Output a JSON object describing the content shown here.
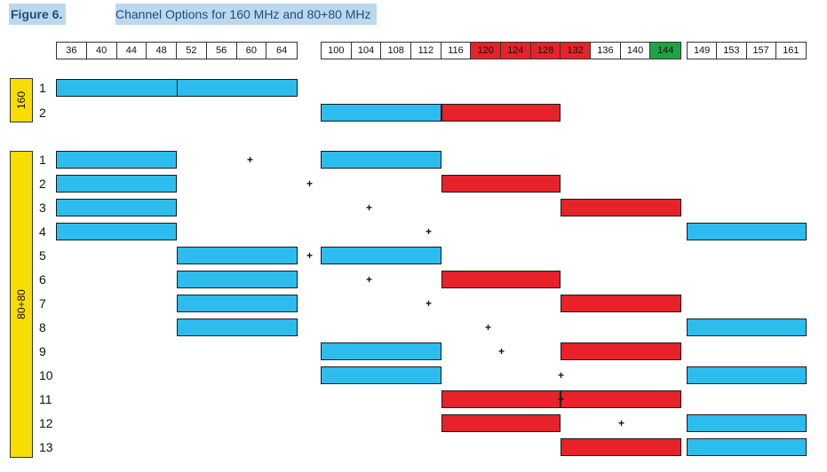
{
  "figure": {
    "label": "Figure 6.",
    "title": "Channel Options for 160 MHz and 80+80 MHz"
  },
  "channels": [
    {
      "group": "g1",
      "items": [
        {
          "num": "36",
          "kind": "normal"
        },
        {
          "num": "40",
          "kind": "normal"
        },
        {
          "num": "44",
          "kind": "normal"
        },
        {
          "num": "48",
          "kind": "normal"
        },
        {
          "num": "52",
          "kind": "normal"
        },
        {
          "num": "56",
          "kind": "normal"
        },
        {
          "num": "60",
          "kind": "normal"
        },
        {
          "num": "64",
          "kind": "normal"
        }
      ]
    },
    {
      "group": "g2",
      "items": [
        {
          "num": "100",
          "kind": "normal"
        },
        {
          "num": "104",
          "kind": "normal"
        },
        {
          "num": "108",
          "kind": "normal"
        },
        {
          "num": "112",
          "kind": "normal"
        },
        {
          "num": "116",
          "kind": "normal"
        },
        {
          "num": "120",
          "kind": "dfs"
        },
        {
          "num": "124",
          "kind": "dfs"
        },
        {
          "num": "128",
          "kind": "dfs"
        },
        {
          "num": "132",
          "kind": "dfs"
        },
        {
          "num": "136",
          "kind": "normal"
        },
        {
          "num": "140",
          "kind": "normal"
        },
        {
          "num": "144",
          "kind": "green"
        }
      ]
    },
    {
      "group": "g3",
      "items": [
        {
          "num": "149",
          "kind": "normal"
        },
        {
          "num": "153",
          "kind": "normal"
        },
        {
          "num": "157",
          "kind": "normal"
        },
        {
          "num": "161",
          "kind": "normal"
        }
      ]
    }
  ],
  "groups": {
    "g160": "160",
    "g8080": "80+80"
  },
  "colors": {
    "blue": "#2cbdee",
    "red": "#e8222a",
    "yellow": "#f7dd00",
    "green": "#1ea445"
  },
  "rows160": [
    {
      "label": "1",
      "blocks": [
        {
          "seg": "A1",
          "color": "blue"
        },
        {
          "seg": "A2",
          "color": "blue"
        }
      ]
    },
    {
      "label": "2",
      "blocks": [
        {
          "seg": "B1",
          "color": "blue"
        },
        {
          "seg": "B2",
          "color": "red"
        }
      ]
    }
  ],
  "rows8080": [
    {
      "label": "1",
      "blocks": [
        {
          "seg": "A1",
          "color": "blue"
        },
        {
          "seg": "B1",
          "color": "blue"
        }
      ]
    },
    {
      "label": "2",
      "blocks": [
        {
          "seg": "A1",
          "color": "blue"
        },
        {
          "seg": "B2",
          "color": "red"
        }
      ]
    },
    {
      "label": "3",
      "blocks": [
        {
          "seg": "A1",
          "color": "blue"
        },
        {
          "seg": "B3",
          "color": "red"
        }
      ]
    },
    {
      "label": "4",
      "blocks": [
        {
          "seg": "A1",
          "color": "blue"
        },
        {
          "seg": "C1",
          "color": "blue"
        }
      ]
    },
    {
      "label": "5",
      "blocks": [
        {
          "seg": "A2",
          "color": "blue"
        },
        {
          "seg": "B1",
          "color": "blue"
        }
      ]
    },
    {
      "label": "6",
      "blocks": [
        {
          "seg": "A2",
          "color": "blue"
        },
        {
          "seg": "B2",
          "color": "red"
        }
      ]
    },
    {
      "label": "7",
      "blocks": [
        {
          "seg": "A2",
          "color": "blue"
        },
        {
          "seg": "B3",
          "color": "red"
        }
      ]
    },
    {
      "label": "8",
      "blocks": [
        {
          "seg": "A2",
          "color": "blue"
        },
        {
          "seg": "C1",
          "color": "blue"
        }
      ]
    },
    {
      "label": "9",
      "blocks": [
        {
          "seg": "B1",
          "color": "blue"
        },
        {
          "seg": "B3",
          "color": "red"
        }
      ]
    },
    {
      "label": "10",
      "blocks": [
        {
          "seg": "B1",
          "color": "blue"
        },
        {
          "seg": "C1",
          "color": "blue"
        }
      ]
    },
    {
      "label": "11",
      "blocks": [
        {
          "seg": "B2",
          "color": "red"
        },
        {
          "seg": "B3",
          "color": "red"
        }
      ]
    },
    {
      "label": "12",
      "blocks": [
        {
          "seg": "B2",
          "color": "red"
        },
        {
          "seg": "C1",
          "color": "blue"
        }
      ]
    },
    {
      "label": "13",
      "blocks": [
        {
          "seg": "B3",
          "color": "red"
        },
        {
          "seg": "C1",
          "color": "blue"
        }
      ]
    }
  ],
  "plus_symbol": "+"
}
